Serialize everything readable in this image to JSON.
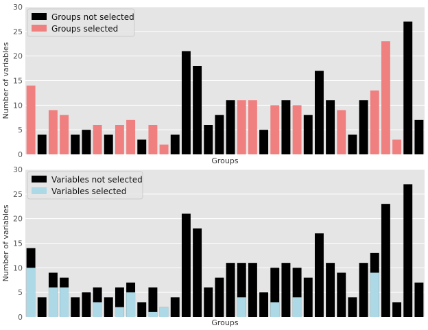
{
  "chart_data": [
    {
      "type": "bar",
      "xlabel": "Groups",
      "ylabel": "Number of variables",
      "ylim": [
        0,
        30
      ],
      "yticks": [
        0,
        5,
        10,
        15,
        20,
        25,
        30
      ],
      "grid": "y",
      "legend_position": "top-left",
      "legend": [
        {
          "label": "Groups not selected",
          "color": "#000000"
        },
        {
          "label": "Groups selected",
          "color": "#f08080"
        }
      ],
      "values": [
        14,
        4,
        9,
        8,
        4,
        5,
        6,
        4,
        6,
        7,
        3,
        6,
        2,
        4,
        21,
        18,
        6,
        8,
        11,
        11,
        11,
        5,
        10,
        11,
        10,
        8,
        17,
        11,
        9,
        4,
        11,
        13,
        23,
        3,
        27,
        7
      ],
      "selected": [
        true,
        false,
        true,
        true,
        false,
        false,
        true,
        false,
        true,
        true,
        false,
        true,
        true,
        false,
        false,
        false,
        false,
        false,
        false,
        true,
        true,
        false,
        true,
        false,
        true,
        false,
        false,
        false,
        true,
        false,
        false,
        true,
        true,
        true,
        false,
        false
      ]
    },
    {
      "type": "bar",
      "stacked": true,
      "xlabel": "Groups",
      "ylabel": "Number of variables",
      "ylim": [
        0,
        30
      ],
      "yticks": [
        0,
        5,
        10,
        15,
        20,
        25,
        30
      ],
      "grid": "y",
      "legend_position": "top-left",
      "series": [
        {
          "name": "Variables not selected",
          "color": "#000000",
          "values": [
            14,
            4,
            9,
            8,
            4,
            5,
            6,
            4,
            6,
            7,
            3,
            6,
            2,
            4,
            21,
            18,
            6,
            8,
            11,
            11,
            11,
            5,
            10,
            11,
            10,
            8,
            17,
            11,
            9,
            4,
            11,
            13,
            23,
            3,
            27,
            7
          ]
        },
        {
          "name": "Variables selected",
          "color": "#add8e6",
          "values": [
            10,
            0,
            6,
            6,
            0,
            0,
            3,
            0,
            2,
            5,
            0,
            1,
            2,
            0,
            0,
            0,
            0,
            0,
            0,
            4,
            0,
            0,
            3,
            0,
            4,
            0,
            0,
            0,
            0,
            0,
            0,
            9,
            0,
            0,
            0,
            0
          ]
        }
      ]
    }
  ]
}
